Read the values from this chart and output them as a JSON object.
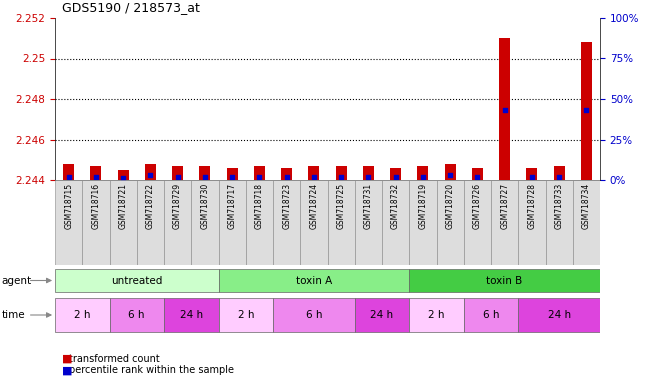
{
  "title": "GDS5190 / 218573_at",
  "samples": [
    "GSM718715",
    "GSM718716",
    "GSM718721",
    "GSM718722",
    "GSM718729",
    "GSM718730",
    "GSM718717",
    "GSM718718",
    "GSM718723",
    "GSM718724",
    "GSM718725",
    "GSM718731",
    "GSM718732",
    "GSM718719",
    "GSM718720",
    "GSM718726",
    "GSM718727",
    "GSM718728",
    "GSM718733",
    "GSM718734"
  ],
  "transformed_counts": [
    2.2448,
    2.2447,
    2.2445,
    2.2448,
    2.2447,
    2.2447,
    2.2446,
    2.2447,
    2.2446,
    2.2447,
    2.2447,
    2.2447,
    2.2446,
    2.2447,
    2.2448,
    2.2446,
    2.251,
    2.2446,
    2.2447,
    2.2508
  ],
  "percentile_ranks": [
    2,
    2,
    1,
    3,
    2,
    2,
    2,
    2,
    2,
    2,
    2,
    2,
    2,
    2,
    3,
    2,
    43,
    2,
    2,
    43
  ],
  "ylim_left": [
    2.244,
    2.252
  ],
  "ylim_right": [
    0,
    100
  ],
  "yticks_left": [
    2.244,
    2.246,
    2.248,
    2.25,
    2.252
  ],
  "yticks_right": [
    0,
    25,
    50,
    75,
    100
  ],
  "bar_color": "#cc0000",
  "dot_color": "#0000cc",
  "bar_baseline": 2.244,
  "agent_groups": [
    {
      "label": "untreated",
      "start": 0,
      "end": 6,
      "color": "#ccffcc"
    },
    {
      "label": "toxin A",
      "start": 6,
      "end": 13,
      "color": "#88ee88"
    },
    {
      "label": "toxin B",
      "start": 13,
      "end": 20,
      "color": "#44cc44"
    }
  ],
  "time_groups": [
    {
      "label": "2 h",
      "start": 0,
      "end": 2,
      "color": "#ffccff"
    },
    {
      "label": "6 h",
      "start": 2,
      "end": 4,
      "color": "#ee88ee"
    },
    {
      "label": "24 h",
      "start": 4,
      "end": 6,
      "color": "#dd44dd"
    },
    {
      "label": "2 h",
      "start": 6,
      "end": 8,
      "color": "#ffccff"
    },
    {
      "label": "6 h",
      "start": 8,
      "end": 11,
      "color": "#ee88ee"
    },
    {
      "label": "24 h",
      "start": 11,
      "end": 13,
      "color": "#dd44dd"
    },
    {
      "label": "2 h",
      "start": 13,
      "end": 15,
      "color": "#ffccff"
    },
    {
      "label": "6 h",
      "start": 15,
      "end": 17,
      "color": "#ee88ee"
    },
    {
      "label": "24 h",
      "start": 17,
      "end": 20,
      "color": "#dd44dd"
    }
  ],
  "xtick_bg": "#cccccc",
  "fig_bg": "#ffffff",
  "plot_bg": "#ffffff",
  "left_axis_color": "#cc0000",
  "right_axis_color": "#0000cc"
}
